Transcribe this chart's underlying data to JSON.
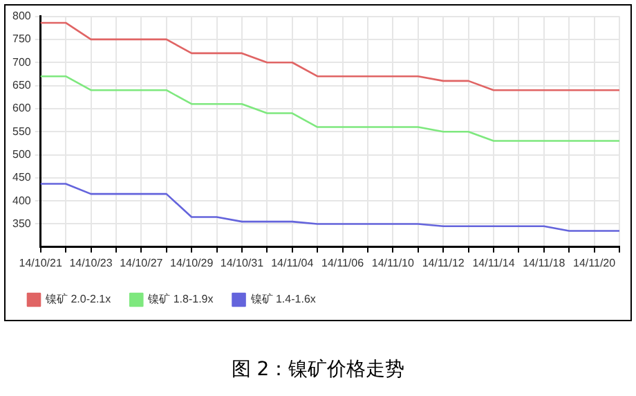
{
  "chart_data": {
    "type": "line",
    "title": "图 2：镍矿价格走势",
    "categories": [
      "14/10/21",
      null,
      "14/10/23",
      null,
      "14/10/27",
      null,
      "14/10/29",
      null,
      "14/10/31",
      null,
      "14/11/04",
      null,
      "14/11/06",
      null,
      "14/11/10",
      null,
      "14/11/12",
      null,
      "14/11/14",
      null,
      "14/11/18",
      null,
      "14/11/20",
      null
    ],
    "series": [
      {
        "name": "镍矿 2.0-2.1x",
        "color": "#e06464",
        "values": [
          786,
          786,
          750,
          750,
          750,
          750,
          720,
          720,
          720,
          700,
          700,
          670,
          670,
          670,
          670,
          670,
          660,
          660,
          640,
          640,
          640,
          640,
          640,
          640
        ]
      },
      {
        "name": "镍矿 1.8-1.9x",
        "color": "#7ee87e",
        "values": [
          670,
          670,
          640,
          640,
          640,
          640,
          610,
          610,
          610,
          590,
          590,
          560,
          560,
          560,
          560,
          560,
          550,
          550,
          530,
          530,
          530,
          530,
          530,
          530
        ]
      },
      {
        "name": "镍矿 1.4-1.6x",
        "color": "#6464dc",
        "values": [
          437,
          437,
          415,
          415,
          415,
          415,
          365,
          365,
          355,
          355,
          355,
          350,
          350,
          350,
          350,
          350,
          345,
          345,
          345,
          345,
          345,
          335,
          335,
          335
        ]
      }
    ],
    "ylim": [
      300,
      800
    ],
    "yticks": [
      350,
      400,
      450,
      500,
      550,
      600,
      650,
      700,
      750,
      800
    ],
    "grid": true,
    "legend": "bottom left",
    "marker": "none",
    "line_style": "solid"
  }
}
